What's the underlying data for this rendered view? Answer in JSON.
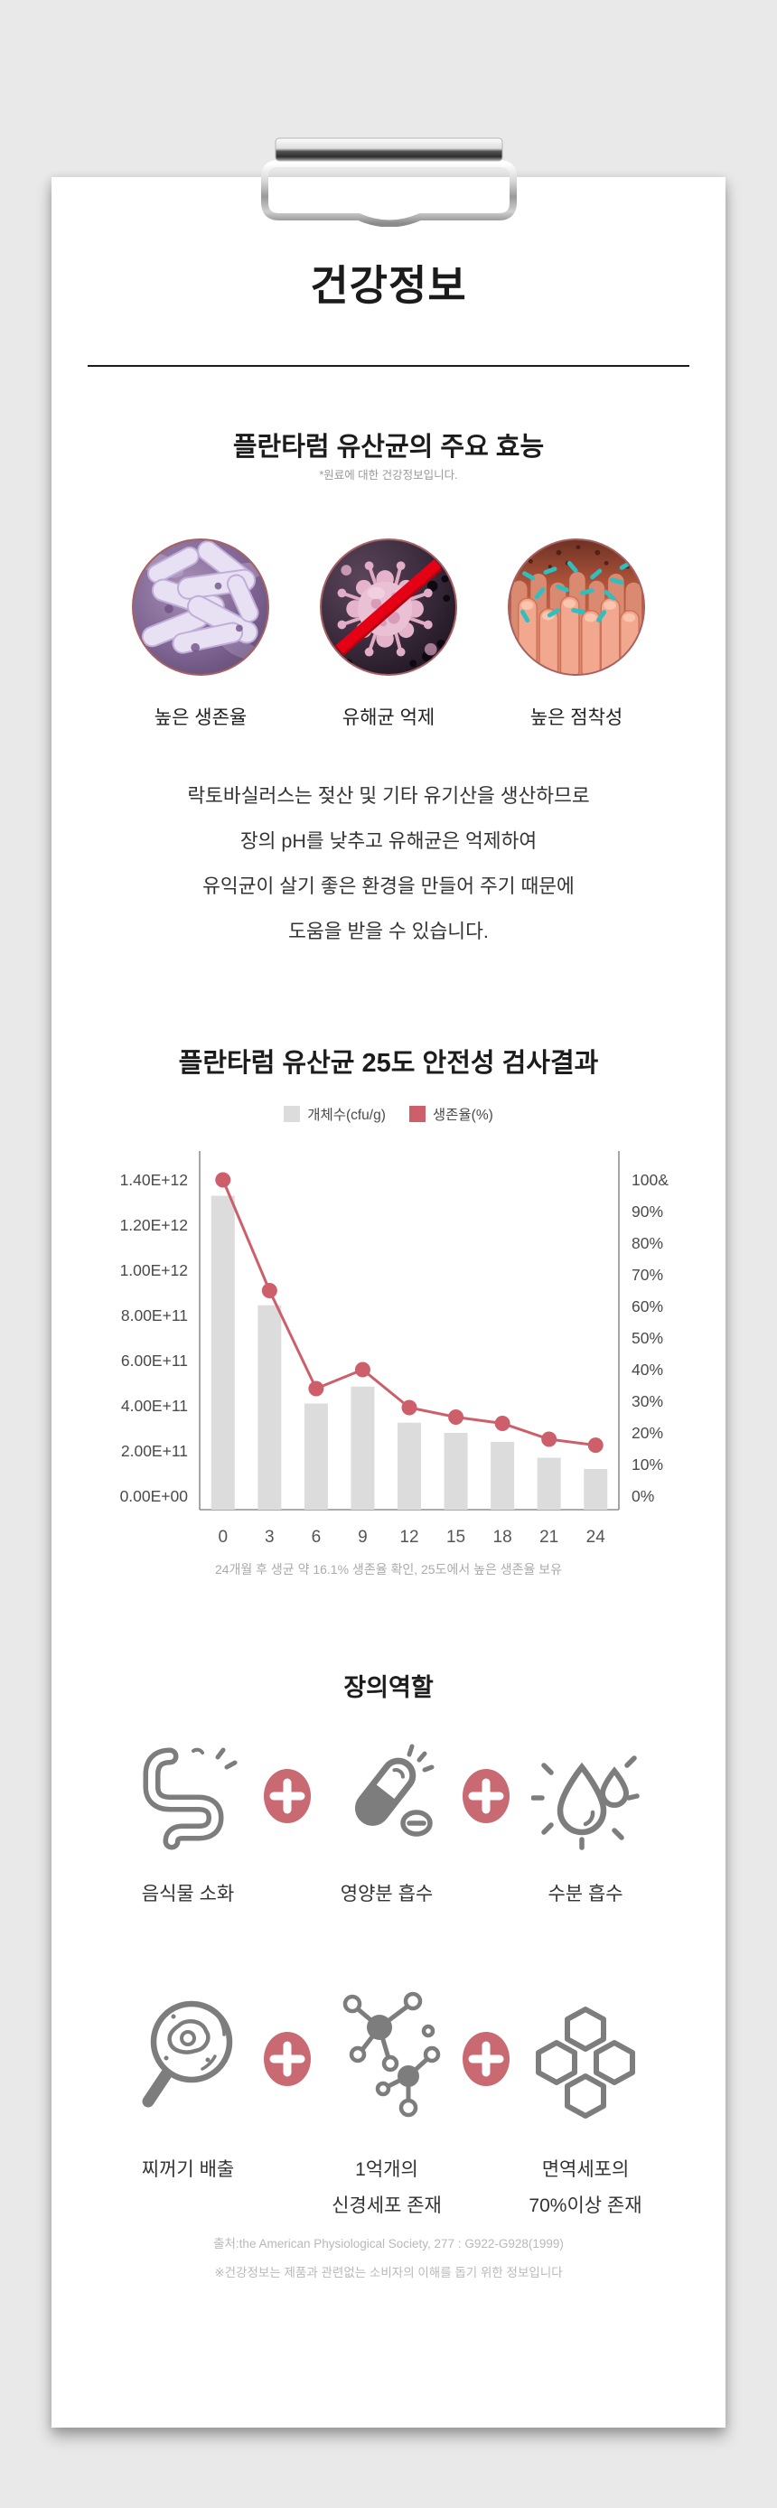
{
  "page": {
    "background": "#e9e9e9",
    "card_background": "#ffffff"
  },
  "header": {
    "title": "건강정보"
  },
  "effects": {
    "heading": "플란타럼 유산균의 주요 효능",
    "subtitle": "*원료에 대한 건강정보입니다.",
    "items": [
      {
        "label": "높은 생존율",
        "image": "purple-bacteria-photo"
      },
      {
        "label": "유해균 억제",
        "image": "blocked-virus-photo"
      },
      {
        "label": "높은 점착성",
        "image": "intestinal-villi-photo"
      }
    ],
    "description_lines": [
      "락토바실러스는 젖산 및 기타 유기산을 생산하므로",
      "장의 pH를 낮추고 유해균은 억제하여",
      "유익균이 살기 좋은 환경을 만들어 주기 때문에",
      "도움을 받을 수 있습니다."
    ]
  },
  "chart_section": {
    "heading": "플란타럼 유산균 25도 안전성 검사결과",
    "caption": "24개월 후 생균 약 16.1% 생존율 확인, 25도에서 높은 생존율 보유"
  },
  "chart_data": {
    "type": "bar+line",
    "title": "플란타럼 유산균 25도 안전성 검사결과",
    "categories": [
      0,
      3,
      6,
      9,
      12,
      15,
      18,
      21,
      24
    ],
    "series": [
      {
        "name": "개체수(cfu/g)",
        "type": "bar",
        "color": "#dcdcdc",
        "values": [
          1330000000000.0,
          845000000000.0,
          410000000000.0,
          485000000000.0,
          325000000000.0,
          280000000000.0,
          240000000000.0,
          170000000000.0,
          120000000000.0
        ]
      },
      {
        "name": "생존율(%)",
        "type": "line",
        "color": "#cd5f6b",
        "values": [
          100,
          65,
          34,
          40,
          28,
          25,
          23,
          18,
          16.1
        ]
      }
    ],
    "left_axis": {
      "min": 0,
      "max": 1400000000000.0,
      "ticks": [
        "1.40E+12",
        "1.20E+12",
        "1.00E+12",
        "8.00E+11",
        "6.00E+11",
        "4.00E+11",
        "2.00E+11",
        "0.00E+00"
      ]
    },
    "right_axis": {
      "min": 0,
      "max": 100,
      "ticks": [
        "100&",
        "90%",
        "80%",
        "70%",
        "60%",
        "50%",
        "40%",
        "30%",
        "20%",
        "10%",
        "0%"
      ]
    },
    "grid": false,
    "legend_position": "top"
  },
  "gut_section": {
    "heading": "장의역할",
    "rows": [
      [
        {
          "icon": "intestine-icon",
          "label_lines": [
            "음식물 소화"
          ]
        },
        {
          "icon": "capsule-icon",
          "label_lines": [
            "영양분 흡수"
          ]
        },
        {
          "icon": "water-drops-icon",
          "label_lines": [
            "수분 흡수"
          ]
        }
      ],
      [
        {
          "icon": "magnifier-icon",
          "label_lines": [
            "찌꺼기 배출"
          ]
        },
        {
          "icon": "neurons-icon",
          "label_lines": [
            "1억개의",
            "신경세포 존재"
          ]
        },
        {
          "icon": "honeycomb-icon",
          "label_lines": [
            "면역세포의",
            "70%이상 존재"
          ]
        }
      ]
    ]
  },
  "footer": {
    "source": "출처:the American Physiological Society, 277 : G922-G928(1999)",
    "note": "※건강정보는 제품과 관련없는 소비자의 이해를 돕기 위한 정보입니다"
  }
}
